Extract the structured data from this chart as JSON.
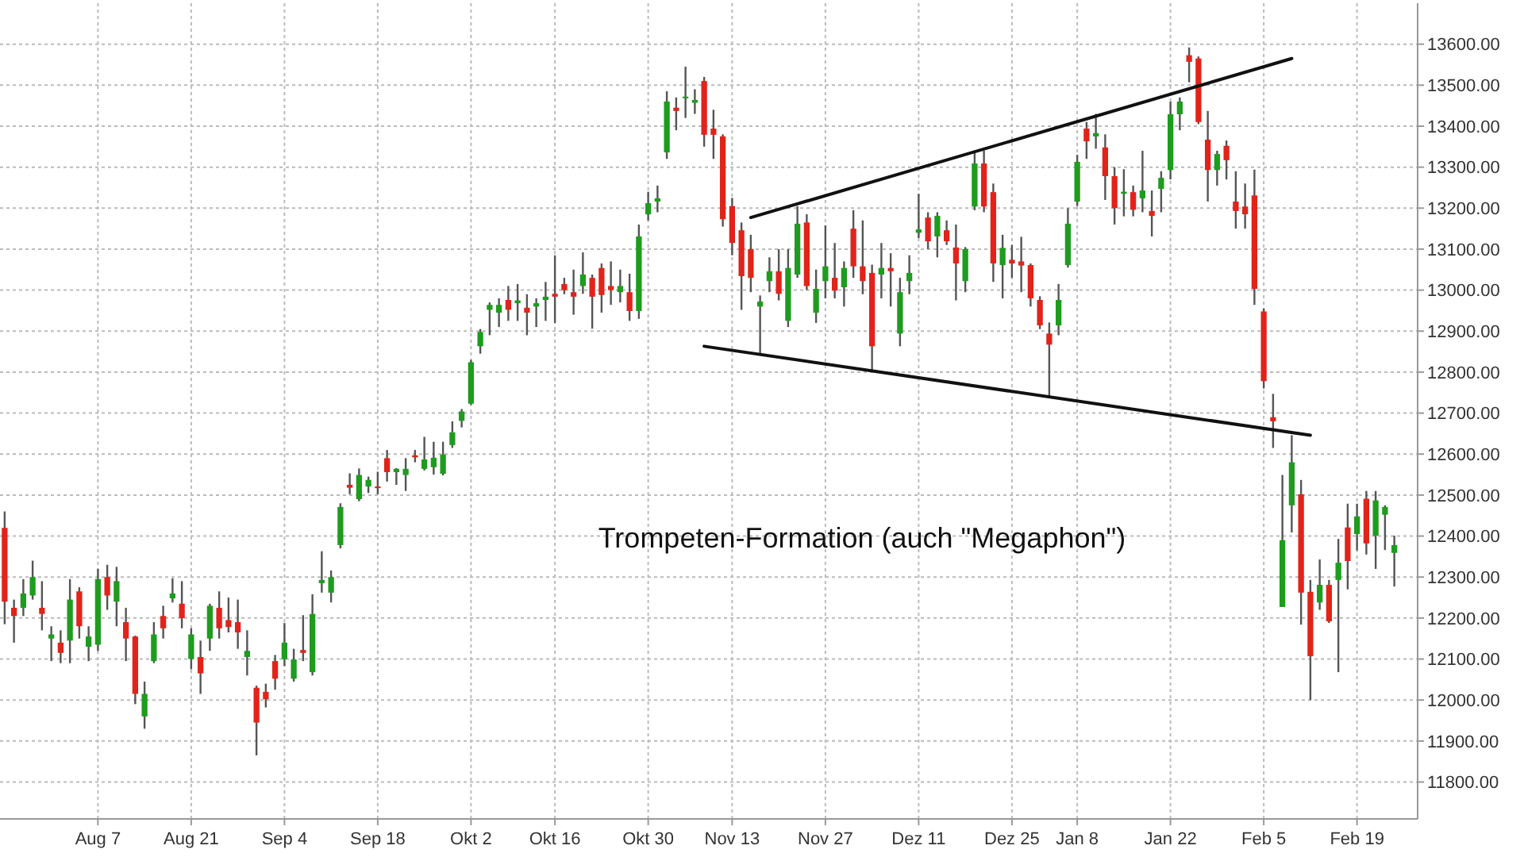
{
  "chart_data": {
    "type": "candlestick",
    "categories": [
      null,
      null,
      null,
      null,
      null,
      null,
      null,
      null,
      null,
      null,
      "Aug 7",
      null,
      null,
      null,
      null,
      null,
      null,
      null,
      null,
      null,
      "Aug 21",
      null,
      null,
      null,
      null,
      null,
      null,
      null,
      null,
      null,
      "Sep 4",
      null,
      null,
      null,
      null,
      null,
      null,
      null,
      null,
      null,
      "Sep 18",
      null,
      null,
      null,
      null,
      null,
      null,
      null,
      null,
      null,
      "Okt 2",
      null,
      null,
      null,
      null,
      null,
      null,
      null,
      null,
      "Okt 16",
      null,
      null,
      null,
      null,
      null,
      null,
      null,
      null,
      null,
      "Okt 30",
      null,
      null,
      null,
      null,
      null,
      null,
      null,
      null,
      "Nov 13",
      null,
      null,
      null,
      null,
      null,
      null,
      null,
      null,
      null,
      "Nov 27",
      null,
      null,
      null,
      null,
      null,
      null,
      null,
      null,
      null,
      "Dez 11",
      null,
      null,
      null,
      null,
      null,
      null,
      null,
      null,
      null,
      "Dez 25",
      null,
      null,
      null,
      null,
      null,
      null,
      "Jan 8",
      null,
      null,
      null,
      null,
      null,
      null,
      null,
      null,
      null,
      "Jan 22",
      null,
      null,
      null,
      null,
      null,
      null,
      null,
      null,
      null,
      "Feb 5",
      null,
      null,
      null,
      null,
      null,
      null,
      null,
      null,
      null,
      "Feb 19",
      null,
      null,
      null,
      null
    ],
    "ohlc": [
      [
        12420,
        12460,
        12185,
        12240
      ],
      [
        12225,
        12245,
        12140,
        12205
      ],
      [
        12225,
        12295,
        12205,
        12260
      ],
      [
        12255,
        12340,
        12245,
        12300
      ],
      [
        12225,
        12290,
        12170,
        12210
      ],
      [
        12150,
        12180,
        12095,
        12160
      ],
      [
        12140,
        12170,
        12090,
        12115
      ],
      [
        12145,
        12295,
        12090,
        12245
      ],
      [
        12265,
        12275,
        12150,
        12180
      ],
      [
        12130,
        12180,
        12095,
        12155
      ],
      [
        12135,
        12320,
        12120,
        12295
      ],
      [
        12300,
        12330,
        12220,
        12255
      ],
      [
        12240,
        12325,
        12180,
        12290
      ],
      [
        12190,
        12225,
        12095,
        12150
      ],
      [
        12155,
        12157,
        11990,
        12015
      ],
      [
        11960,
        12045,
        11930,
        12015
      ],
      [
        12095,
        12190,
        12090,
        12160
      ],
      [
        12205,
        12230,
        12150,
        12175
      ],
      [
        12248,
        12297,
        12238,
        12260
      ],
      [
        12235,
        12290,
        12175,
        12200
      ],
      [
        12100,
        12175,
        12075,
        12160
      ],
      [
        12105,
        12145,
        12015,
        12065
      ],
      [
        12150,
        12235,
        12120,
        12230
      ],
      [
        12225,
        12265,
        12150,
        12175
      ],
      [
        12195,
        12250,
        12165,
        12178
      ],
      [
        12190,
        12245,
        12125,
        12165
      ],
      [
        12105,
        12170,
        12060,
        12120
      ],
      [
        12030,
        12035,
        11865,
        11945
      ],
      [
        12020,
        12040,
        11982,
        12002
      ],
      [
        12095,
        12110,
        12025,
        12052
      ],
      [
        12100,
        12188,
        12083,
        12140
      ],
      [
        12052,
        12125,
        12045,
        12099
      ],
      [
        12122,
        12207,
        12095,
        12115
      ],
      [
        12068,
        12258,
        12060,
        12210
      ],
      [
        12285,
        12363,
        12262,
        12293
      ],
      [
        12262,
        12316,
        12238,
        12300
      ],
      [
        12378,
        12480,
        12370,
        12471
      ],
      [
        12525,
        12553,
        12502,
        12518
      ],
      [
        12490,
        12565,
        12485,
        12549
      ],
      [
        12521,
        12545,
        12505,
        12537
      ],
      [
        12521,
        12557,
        12502,
        12517
      ],
      [
        12590,
        12610,
        12533,
        12556
      ],
      [
        12556,
        12566,
        12525,
        12564
      ],
      [
        12549,
        12590,
        12510,
        12564
      ],
      [
        12597,
        12610,
        12580,
        12592
      ],
      [
        12564,
        12642,
        12560,
        12587
      ],
      [
        12568,
        12630,
        12550,
        12591
      ],
      [
        12552,
        12630,
        12548,
        12599
      ],
      [
        12622,
        12680,
        12615,
        12653
      ],
      [
        12681,
        12710,
        12665,
        12704
      ],
      [
        12723,
        12830,
        12720,
        12824
      ],
      [
        12863,
        12905,
        12845,
        12898
      ],
      [
        12952,
        12970,
        12890,
        12964
      ],
      [
        12945,
        12980,
        12910,
        12964
      ],
      [
        12976,
        13010,
        12925,
        12952
      ],
      [
        12968,
        13015,
        12925,
        12975
      ],
      [
        12957,
        12990,
        12890,
        12945
      ],
      [
        12960,
        12980,
        12910,
        12968
      ],
      [
        12976,
        13020,
        12925,
        12984
      ],
      [
        12991,
        13085,
        12920,
        12984
      ],
      [
        13015,
        13030,
        12990,
        13000
      ],
      [
        12995,
        13050,
        12940,
        12984
      ],
      [
        13010,
        13092,
        12991,
        13038
      ],
      [
        13030,
        13038,
        12906,
        12984
      ],
      [
        13054,
        13065,
        12945,
        12988
      ],
      [
        13010,
        13070,
        12964,
        13000
      ],
      [
        12995,
        13050,
        12970,
        13010
      ],
      [
        12995,
        13040,
        12925,
        12949
      ],
      [
        12949,
        13160,
        12930,
        13131
      ],
      [
        13185,
        13240,
        13170,
        13212
      ],
      [
        13216,
        13255,
        13190,
        13224
      ],
      [
        13336,
        13485,
        13320,
        13460
      ],
      [
        13445,
        13470,
        13390,
        13437
      ],
      [
        13468,
        13545,
        13420,
        13472
      ],
      [
        13457,
        13490,
        13430,
        13464
      ],
      [
        13510,
        13520,
        13350,
        13379
      ],
      [
        13394,
        13440,
        13320,
        13379
      ],
      [
        13375,
        13380,
        13155,
        13173
      ],
      [
        13205,
        13225,
        13085,
        13115
      ],
      [
        13146,
        13165,
        12952,
        13034
      ],
      [
        13100,
        13135,
        12995,
        13030
      ],
      [
        12960,
        12987,
        12844,
        12972
      ],
      [
        13022,
        13080,
        12995,
        13046
      ],
      [
        13046,
        13100,
        12975,
        12991
      ],
      [
        12925,
        13100,
        12910,
        13054
      ],
      [
        13038,
        13205,
        13030,
        13162
      ],
      [
        13165,
        13185,
        13000,
        13010
      ],
      [
        12945,
        13050,
        12920,
        13003
      ],
      [
        13022,
        13158,
        12980,
        13058
      ],
      [
        13030,
        13115,
        12980,
        12999
      ],
      [
        13007,
        13070,
        12960,
        13054
      ],
      [
        13150,
        13195,
        13030,
        13058
      ],
      [
        13058,
        13170,
        12990,
        13022
      ],
      [
        13042,
        13062,
        12805,
        12863
      ],
      [
        13038,
        13115,
        12980,
        13054
      ],
      [
        13054,
        13090,
        12960,
        13046
      ],
      [
        12894,
        13030,
        12863,
        12995
      ],
      [
        13022,
        13085,
        12990,
        13042
      ],
      [
        13140,
        13235,
        13127,
        13148
      ],
      [
        13177,
        13190,
        13100,
        13119
      ],
      [
        13131,
        13190,
        13080,
        13181
      ],
      [
        13146,
        13170,
        13110,
        13119
      ],
      [
        13104,
        13160,
        12975,
        13065
      ],
      [
        13022,
        13105,
        12995,
        13100
      ],
      [
        13204,
        13340,
        13195,
        13309
      ],
      [
        13309,
        13340,
        13190,
        13204
      ],
      [
        13239,
        13260,
        13020,
        13065
      ],
      [
        13061,
        13135,
        12980,
        13103
      ],
      [
        13074,
        13110,
        13030,
        13065
      ],
      [
        13070,
        13130,
        12995,
        13060
      ],
      [
        13061,
        13065,
        12960,
        12980
      ],
      [
        12976,
        12985,
        12905,
        12914
      ],
      [
        12894,
        12921,
        12739,
        12867
      ],
      [
        12914,
        13015,
        12890,
        12976
      ],
      [
        13061,
        13200,
        13055,
        13162
      ],
      [
        13216,
        13330,
        13205,
        13313
      ],
      [
        13394,
        13410,
        13320,
        13363
      ],
      [
        13375,
        13430,
        13345,
        13383
      ],
      [
        13348,
        13380,
        13220,
        13278
      ],
      [
        13278,
        13300,
        13160,
        13200
      ],
      [
        13235,
        13295,
        13180,
        13240
      ],
      [
        13239,
        13255,
        13180,
        13196
      ],
      [
        13224,
        13340,
        13190,
        13243
      ],
      [
        13193,
        13243,
        13131,
        13181
      ],
      [
        13247,
        13290,
        13190,
        13274
      ],
      [
        13293,
        13460,
        13270,
        13429
      ],
      [
        13429,
        13470,
        13390,
        13460
      ],
      [
        13573,
        13592,
        13507,
        13557
      ],
      [
        13565,
        13570,
        13405,
        13410
      ],
      [
        13367,
        13437,
        13216,
        13293
      ],
      [
        13293,
        13340,
        13255,
        13332
      ],
      [
        13352,
        13365,
        13270,
        13317
      ],
      [
        13216,
        13290,
        13150,
        13193
      ],
      [
        13204,
        13260,
        13150,
        13185
      ],
      [
        13231,
        13294,
        12964,
        13003
      ],
      [
        12948,
        12955,
        12760,
        12778
      ],
      [
        12690,
        12747,
        12615,
        12680
      ],
      [
        12227,
        12549,
        12227,
        12390
      ],
      [
        12475,
        12646,
        12409,
        12580
      ],
      [
        12502,
        12537,
        12184,
        12262
      ],
      [
        12264,
        12293,
        12000,
        12107
      ],
      [
        12238,
        12343,
        12220,
        12281
      ],
      [
        12281,
        12293,
        12188,
        12192
      ],
      [
        12293,
        12393,
        12068,
        12335
      ],
      [
        12421,
        12479,
        12270,
        12339
      ],
      [
        12405,
        12479,
        12365,
        12448
      ],
      [
        12491,
        12510,
        12355,
        12382
      ],
      [
        12401,
        12510,
        12320,
        12487
      ],
      [
        12452,
        12475,
        12366,
        12471
      ],
      [
        12359,
        12401,
        12277,
        12378
      ]
    ],
    "colors": [
      "#e2231a",
      "#e2231a",
      "#1e9c1e",
      "#1e9c1e",
      "#e2231a",
      "#1e9c1e",
      "#e2231a",
      "#1e9c1e",
      "#e2231a",
      "#1e9c1e",
      "#1e9c1e",
      "#e2231a",
      "#1e9c1e",
      "#e2231a",
      "#e2231a",
      "#1e9c1e",
      "#1e9c1e",
      "#e2231a",
      "#1e9c1e",
      "#e2231a",
      "#1e9c1e",
      "#e2231a",
      "#1e9c1e",
      "#e2231a",
      "#e2231a",
      "#e2231a",
      "#1e9c1e",
      "#e2231a",
      "#e2231a",
      "#e2231a",
      "#1e9c1e",
      "#1e9c1e",
      "#e2231a",
      "#1e9c1e",
      "#1e9c1e",
      "#1e9c1e",
      "#1e9c1e",
      "#e2231a",
      "#1e9c1e",
      "#1e9c1e",
      "#e2231a",
      "#e2231a",
      "#1e9c1e",
      "#1e9c1e",
      "#e2231a",
      "#1e9c1e",
      "#1e9c1e",
      "#1e9c1e",
      "#1e9c1e",
      "#1e9c1e",
      "#1e9c1e",
      "#1e9c1e",
      "#1e9c1e",
      "#1e9c1e",
      "#e2231a",
      "#1e9c1e",
      "#e2231a",
      "#1e9c1e",
      "#1e9c1e",
      "#e2231a",
      "#e2231a",
      "#e2231a",
      "#1e9c1e",
      "#e2231a",
      "#e2231a",
      "#e2231a",
      "#1e9c1e",
      "#e2231a",
      "#1e9c1e",
      "#1e9c1e",
      "#1e9c1e",
      "#1e9c1e",
      "#e2231a",
      "#1e9c1e",
      "#1e9c1e",
      "#e2231a",
      "#e2231a",
      "#e2231a",
      "#e2231a",
      "#e2231a",
      "#e2231a",
      "#1e9c1e",
      "#1e9c1e",
      "#e2231a",
      "#1e9c1e",
      "#1e9c1e",
      "#e2231a",
      "#1e9c1e",
      "#1e9c1e",
      "#e2231a",
      "#1e9c1e",
      "#e2231a",
      "#e2231a",
      "#e2231a",
      "#1e9c1e",
      "#e2231a",
      "#1e9c1e",
      "#1e9c1e",
      "#1e9c1e",
      "#e2231a",
      "#1e9c1e",
      "#e2231a",
      "#e2231a",
      "#1e9c1e",
      "#1e9c1e",
      "#e2231a",
      "#e2231a",
      "#1e9c1e",
      "#e2231a",
      "#e2231a",
      "#e2231a",
      "#e2231a",
      "#e2231a",
      "#1e9c1e",
      "#1e9c1e",
      "#1e9c1e",
      "#e2231a",
      "#1e9c1e",
      "#e2231a",
      "#e2231a",
      "#1e9c1e",
      "#e2231a",
      "#1e9c1e",
      "#e2231a",
      "#1e9c1e",
      "#1e9c1e",
      "#1e9c1e",
      "#e2231a",
      "#e2231a",
      "#e2231a",
      "#1e9c1e",
      "#e2231a",
      "#e2231a",
      "#e2231a",
      "#e2231a",
      "#e2231a",
      "#e2231a",
      "#1e9c1e",
      "#1e9c1e",
      "#e2231a",
      "#e2231a",
      "#1e9c1e",
      "#e2231a",
      "#1e9c1e",
      "#e2231a",
      "#1e9c1e",
      "#e2231a",
      "#1e9c1e",
      "#1e9c1e",
      "#1e9c1e"
    ],
    "series": [
      {
        "type": "line",
        "color": "#111111",
        "values": [
          null,
          null,
          null,
          null,
          null,
          null,
          null,
          null,
          null,
          null,
          null,
          null,
          null,
          null,
          null,
          null,
          null,
          null,
          null,
          null,
          null,
          null,
          null,
          null,
          null,
          null,
          null,
          null,
          null,
          null,
          null,
          null,
          null,
          null,
          null,
          null,
          null,
          null,
          null,
          null,
          null,
          null,
          null,
          null,
          null,
          null,
          null,
          null,
          null,
          null,
          null,
          null,
          null,
          null,
          null,
          null,
          null,
          null,
          null,
          null,
          null,
          null,
          null,
          null,
          null,
          null,
          null,
          null,
          null,
          null,
          null,
          null,
          null,
          null,
          null,
          null,
          null,
          null,
          null,
          null,
          13177,
          null,
          null,
          null,
          null,
          null,
          null,
          null,
          null,
          null,
          null,
          null,
          null,
          null,
          null,
          null,
          null,
          null,
          null,
          null,
          null,
          null,
          null,
          null,
          null,
          null,
          null,
          null,
          null,
          null,
          null,
          null,
          null,
          null,
          null,
          null,
          null,
          null,
          null,
          null,
          null,
          null,
          null,
          null,
          null,
          null,
          null,
          null,
          null,
          null,
          null,
          null,
          null,
          null,
          null,
          null,
          null,
          null,
          13565,
          null,
          null,
          null,
          null,
          null,
          null,
          null,
          null,
          null,
          null,
          null
        ]
      },
      {
        "type": "line",
        "color": "#111111",
        "values": [
          null,
          null,
          null,
          null,
          null,
          null,
          null,
          null,
          null,
          null,
          null,
          null,
          null,
          null,
          null,
          null,
          null,
          null,
          null,
          null,
          null,
          null,
          null,
          null,
          null,
          null,
          null,
          null,
          null,
          null,
          null,
          null,
          null,
          null,
          null,
          null,
          null,
          null,
          null,
          null,
          null,
          null,
          null,
          null,
          null,
          null,
          null,
          null,
          null,
          null,
          null,
          null,
          null,
          null,
          null,
          null,
          null,
          null,
          null,
          null,
          null,
          null,
          null,
          null,
          null,
          null,
          null,
          null,
          null,
          null,
          null,
          null,
          null,
          null,
          null,
          12863,
          null,
          null,
          null,
          null,
          null,
          null,
          null,
          null,
          null,
          null,
          null,
          null,
          null,
          null,
          null,
          null,
          null,
          null,
          null,
          null,
          null,
          null,
          null,
          null,
          null,
          null,
          null,
          null,
          null,
          null,
          null,
          null,
          null,
          null,
          null,
          null,
          null,
          null,
          null,
          null,
          null,
          null,
          null,
          null,
          null,
          null,
          null,
          null,
          null,
          null,
          null,
          null,
          null,
          null,
          null,
          null,
          null,
          null,
          null,
          null,
          null,
          null,
          null,
          null,
          12646,
          null,
          null,
          null,
          null,
          null,
          null,
          null,
          null,
          null
        ]
      }
    ],
    "ylim": [
      11710,
      13700
    ],
    "yticks": [
      {
        "value": 11800,
        "label": "11800.00"
      },
      {
        "value": 11900,
        "label": "11900.00"
      },
      {
        "value": 12000,
        "label": "12000.00"
      },
      {
        "value": 12100,
        "label": "12100.00"
      },
      {
        "value": 12200,
        "label": "12200.00"
      },
      {
        "value": 12300,
        "label": "12300.00"
      },
      {
        "value": 12400,
        "label": "12400.00"
      },
      {
        "value": 12500,
        "label": "12500.00"
      },
      {
        "value": 12600,
        "label": "12600.00"
      },
      {
        "value": 12700,
        "label": "12700.00"
      },
      {
        "value": 12800,
        "label": "12800.00"
      },
      {
        "value": 12900,
        "label": "12900.00"
      },
      {
        "value": 13000,
        "label": "13000.00"
      },
      {
        "value": 13100,
        "label": "13100.00"
      },
      {
        "value": 13200,
        "label": "13200.00"
      },
      {
        "value": 13300,
        "label": "13300.00"
      },
      {
        "value": 13400,
        "label": "13400.00"
      },
      {
        "value": 13500,
        "label": "13500.00"
      },
      {
        "value": 13600,
        "label": "13600.00"
      }
    ],
    "grid": true,
    "annotations": [
      "Trompeten-Formation (auch \"Megaphon\")"
    ]
  }
}
